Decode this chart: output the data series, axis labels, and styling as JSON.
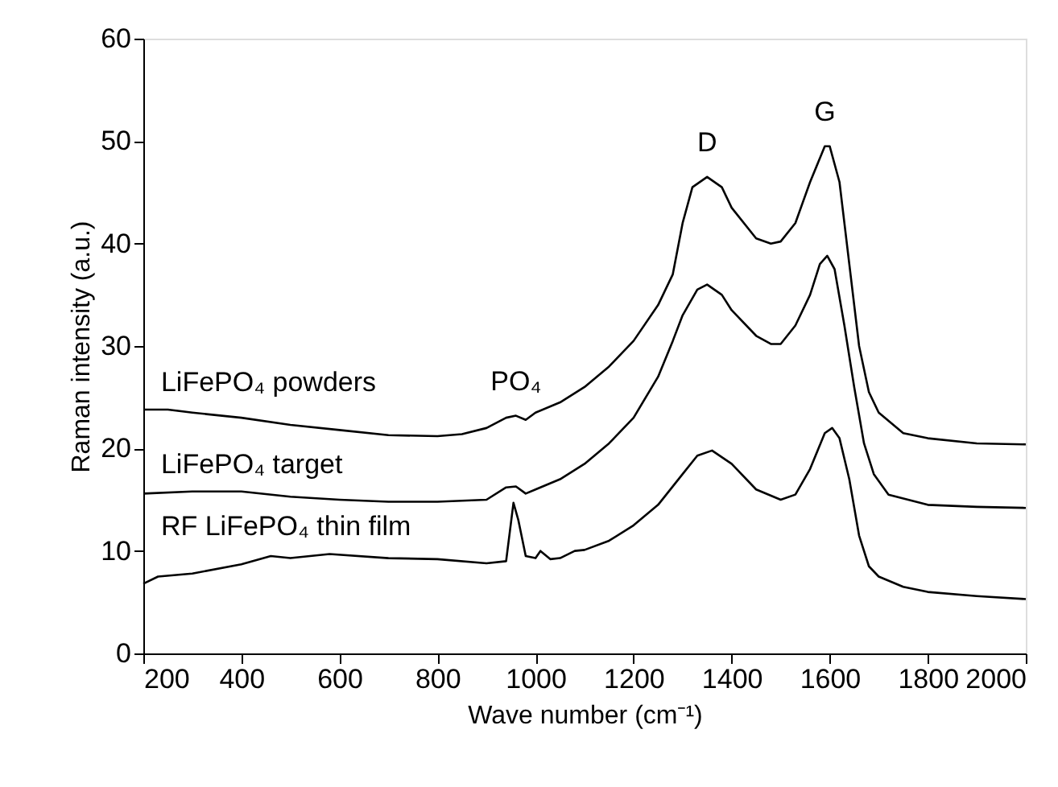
{
  "chart_data": {
    "type": "line",
    "xlabel": "Wave number (cm⁻¹)",
    "ylabel": "Raman intensity (a.u.)",
    "xlim": [
      200,
      2000
    ],
    "xticks": [
      200,
      400,
      600,
      800,
      1000,
      1200,
      1400,
      1600,
      1800,
      2000
    ],
    "ylim": [
      0,
      60
    ],
    "yticks": [
      0,
      10,
      20,
      30,
      40,
      50,
      60
    ],
    "grid": false,
    "legend": false,
    "marker": "none",
    "line_style": "solid",
    "annotations": [
      {
        "text": "D",
        "x": 1350,
        "y": 46.5
      },
      {
        "text": "G",
        "x": 1590,
        "y": 49.5
      },
      {
        "text": "PO₄",
        "x": 960,
        "y": 23.2
      }
    ],
    "series": [
      {
        "name": "LiFePO₄ powders",
        "color": "#000000",
        "x": [
          200,
          250,
          300,
          400,
          500,
          600,
          700,
          800,
          850,
          900,
          940,
          960,
          980,
          1000,
          1050,
          1100,
          1150,
          1200,
          1250,
          1280,
          1300,
          1320,
          1350,
          1380,
          1400,
          1450,
          1480,
          1500,
          1530,
          1560,
          1590,
          1600,
          1620,
          1640,
          1660,
          1680,
          1700,
          1750,
          1800,
          1900,
          2000
        ],
        "values": [
          23.8,
          23.8,
          23.5,
          23,
          22.3,
          21.8,
          21.3,
          21.2,
          21.4,
          22,
          23,
          23.2,
          22.8,
          23.5,
          24.5,
          26,
          28,
          30.5,
          34,
          37,
          42,
          45.5,
          46.5,
          45.5,
          43.5,
          40.5,
          40,
          40.2,
          42,
          46,
          49.5,
          49.5,
          46,
          38,
          30,
          25.5,
          23.5,
          21.5,
          21,
          20.5,
          20.4
        ]
      },
      {
        "name": "LiFePO₄ target",
        "color": "#000000",
        "x": [
          200,
          300,
          400,
          500,
          600,
          700,
          800,
          900,
          940,
          960,
          980,
          1000,
          1050,
          1100,
          1150,
          1200,
          1250,
          1280,
          1300,
          1330,
          1350,
          1380,
          1400,
          1450,
          1480,
          1500,
          1530,
          1560,
          1580,
          1595,
          1610,
          1630,
          1650,
          1670,
          1690,
          1720,
          1800,
          1900,
          2000
        ],
        "values": [
          15.6,
          15.8,
          15.8,
          15.3,
          15,
          14.8,
          14.8,
          15,
          16.2,
          16.3,
          15.6,
          16,
          17,
          18.5,
          20.5,
          23,
          27,
          30.5,
          33,
          35.5,
          36,
          35,
          33.5,
          31,
          30.2,
          30.2,
          32,
          35,
          38,
          38.8,
          37.5,
          32,
          26,
          20.5,
          17.5,
          15.5,
          14.5,
          14.3,
          14.2
        ]
      },
      {
        "name": "RF LiFePO₄ thin film",
        "color": "#000000",
        "x": [
          200,
          230,
          300,
          400,
          460,
          500,
          580,
          700,
          800,
          900,
          940,
          955,
          965,
          980,
          1000,
          1010,
          1030,
          1050,
          1080,
          1100,
          1150,
          1200,
          1250,
          1300,
          1330,
          1360,
          1400,
          1450,
          1500,
          1530,
          1560,
          1590,
          1605,
          1620,
          1640,
          1660,
          1680,
          1700,
          1750,
          1800,
          1900,
          2000
        ],
        "values": [
          6.8,
          7.5,
          7.8,
          8.7,
          9.5,
          9.3,
          9.7,
          9.3,
          9.2,
          8.8,
          9,
          14.7,
          13,
          9.5,
          9.3,
          10,
          9.2,
          9.3,
          10,
          10.1,
          11,
          12.5,
          14.5,
          17.5,
          19.3,
          19.8,
          18.5,
          16,
          15,
          15.5,
          18,
          21.5,
          22,
          21,
          17,
          11.5,
          8.5,
          7.5,
          6.5,
          6,
          5.6,
          5.3
        ]
      }
    ]
  }
}
